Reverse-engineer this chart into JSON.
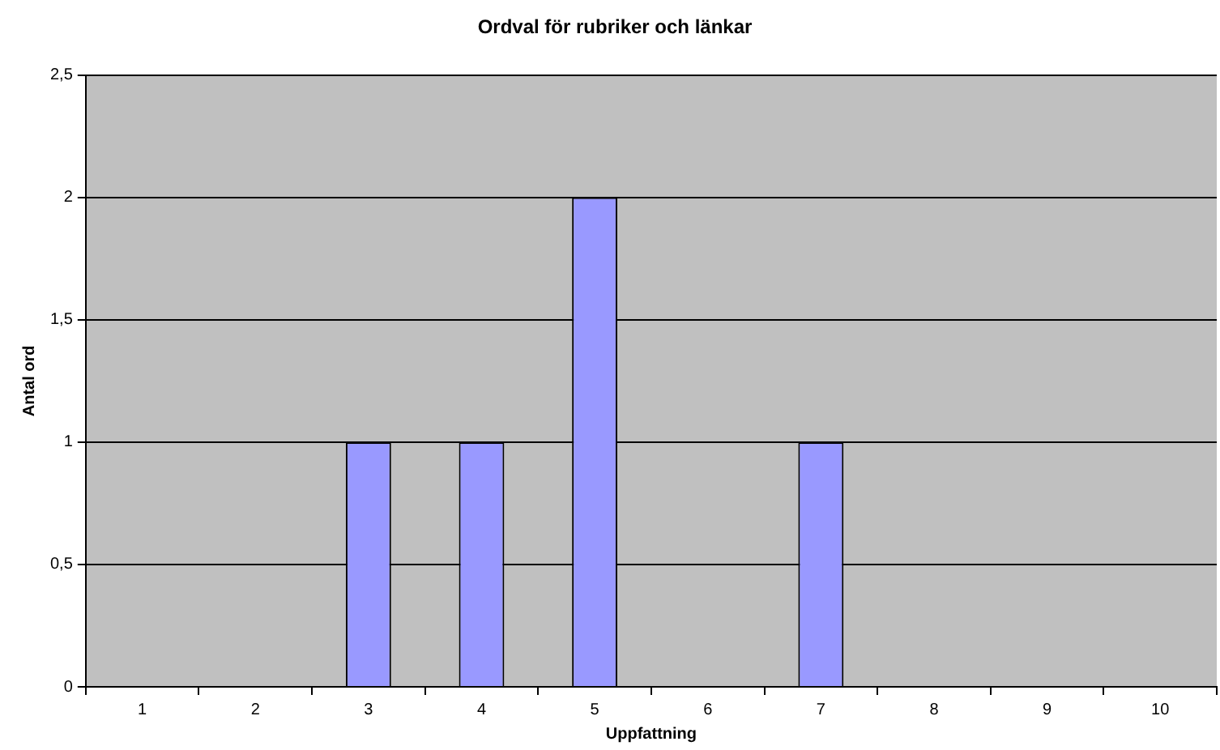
{
  "chart_data": {
    "type": "bar",
    "title": "Ordval för rubriker och länkar",
    "xlabel": "Uppfattning",
    "ylabel": "Antal ord",
    "categories": [
      "1",
      "2",
      "3",
      "4",
      "5",
      "6",
      "7",
      "8",
      "9",
      "10"
    ],
    "values": [
      0,
      0,
      1,
      1,
      2,
      0,
      1,
      0,
      0,
      0
    ],
    "color": "#9999ff",
    "ylim": [
      0,
      2.5
    ],
    "yticks": [
      0,
      {
        "value": 0.5,
        "label": "0,5"
      },
      1,
      {
        "value": 1.5,
        "label": "1,5"
      },
      2,
      {
        "value": 2.5,
        "label": "2,5"
      }
    ],
    "grid": "y",
    "legend": false
  }
}
